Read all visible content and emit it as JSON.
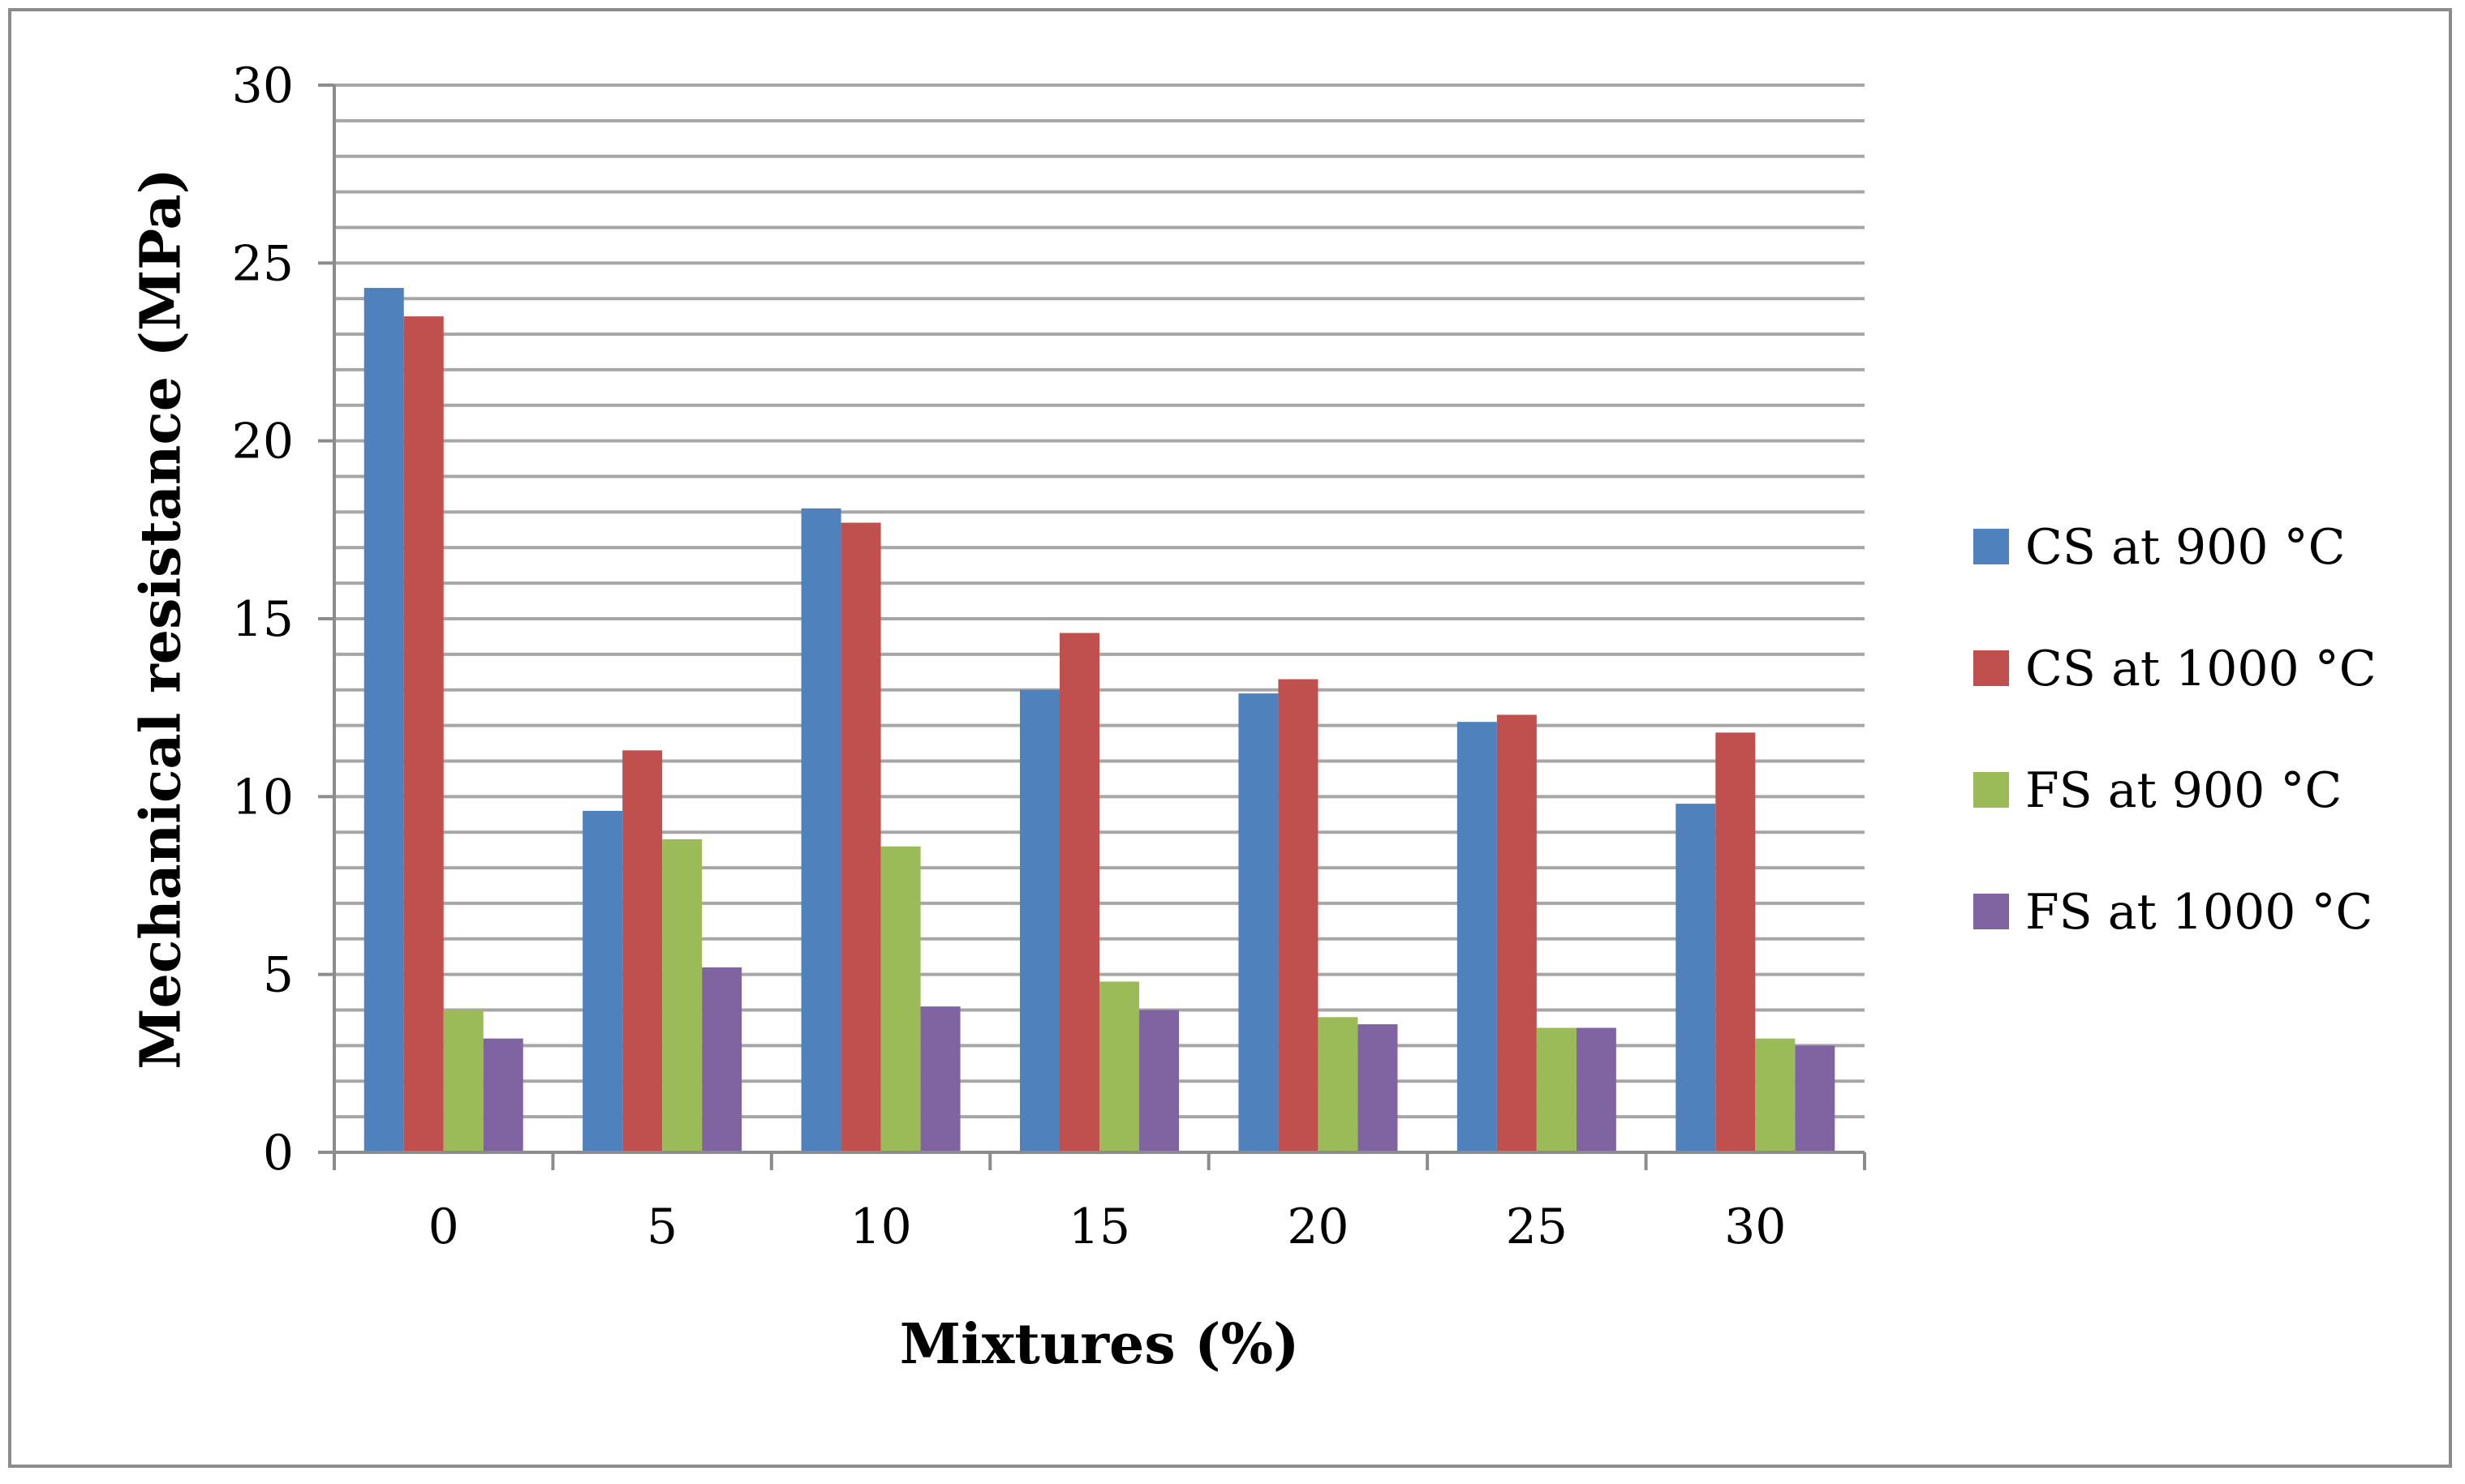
{
  "chart_data": {
    "type": "bar",
    "title": "",
    "xlabel": "Mixtures (%)",
    "ylabel": "Mechanical resistance (MPa)",
    "categories": [
      "0",
      "5",
      "10",
      "15",
      "20",
      "25",
      "30"
    ],
    "series": [
      {
        "name": "CS at 900 °C",
        "color": "#4f81bd",
        "values": [
          24.3,
          9.6,
          18.1,
          13.0,
          12.9,
          12.1,
          9.8
        ]
      },
      {
        "name": "CS at 1000 °C",
        "color": "#c0504d",
        "values": [
          23.5,
          11.3,
          17.7,
          14.6,
          13.3,
          12.3,
          11.8
        ]
      },
      {
        "name": "FS at 900 °C",
        "color": "#9bbb59",
        "values": [
          4.0,
          8.8,
          8.6,
          4.8,
          3.8,
          3.5,
          3.2
        ]
      },
      {
        "name": "FS at 1000 °C",
        "color": "#8064a2",
        "values": [
          3.2,
          5.2,
          4.1,
          4.0,
          3.6,
          3.5,
          3.0
        ]
      }
    ],
    "ylim": [
      0,
      30
    ],
    "major_ticks": [
      0,
      5,
      10,
      15,
      20,
      25,
      30
    ],
    "minor_gridline_step": 1,
    "grid": true,
    "gridline_color": "#a6a6a6",
    "legend_position": "right"
  }
}
